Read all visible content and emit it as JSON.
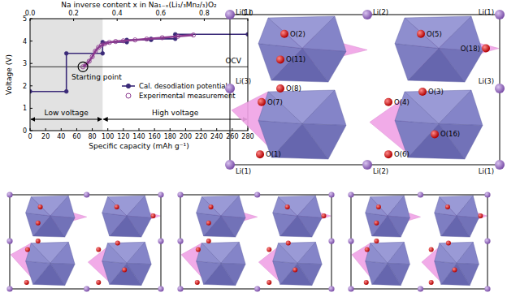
{
  "chart_data": {
    "type": "line",
    "xlabel": "Specific capacity (mAh g⁻¹)",
    "ylabel": "Voltage (V)",
    "x2label": "Na inverse content x in Na₁₋ₓ(Li₁/₃Mn₂/₃)O₂",
    "xlim": [
      0,
      280
    ],
    "xticks": [
      0,
      20,
      40,
      60,
      80,
      100,
      120,
      140,
      160,
      180,
      200,
      220,
      240,
      260,
      280
    ],
    "ylim": [
      0,
      5
    ],
    "yticks": [
      0,
      1,
      2,
      3,
      4,
      5
    ],
    "x2lim": [
      0,
      1
    ],
    "x2ticks": [
      {
        "value": 0,
        "label": "0.0"
      },
      0.2,
      0.4,
      0.6,
      0.8,
      {
        "value": 1,
        "label": "1.0"
      }
    ],
    "legend": "lower right",
    "series": [
      {
        "name": "Cal. desodiation potential",
        "color": "#3a2a78",
        "marker": "circle",
        "line_style": "solid",
        "x": [
          0,
          46.7,
          46.7,
          93.3,
          93.3,
          124.4,
          124.4,
          155.6,
          155.6,
          186.7,
          186.7,
          280
        ],
        "values": [
          1.75,
          1.75,
          3.45,
          3.45,
          3.95,
          3.95,
          4.05,
          4.05,
          4.1,
          4.1,
          4.3,
          4.3
        ]
      },
      {
        "name": "Experimental measurement",
        "color": "#8b3a8f",
        "marker": "open_circle",
        "line_style": "solid",
        "x": [
          68,
          72,
          76,
          80,
          84,
          88,
          92,
          96,
          102,
          110,
          120,
          135,
          150,
          170,
          190,
          210
        ],
        "values": [
          2.85,
          2.95,
          3.1,
          3.3,
          3.55,
          3.72,
          3.82,
          3.88,
          3.94,
          3.98,
          4.01,
          4.05,
          4.09,
          4.15,
          4.21,
          4.27
        ]
      }
    ],
    "regions": [
      {
        "label": "Low voltage",
        "x": [
          0,
          93.3
        ],
        "color": "#e2e2e2"
      },
      {
        "label": "High voltage",
        "x": [
          93.3,
          280
        ]
      }
    ],
    "reference_line": {
      "label": "OCV",
      "value": 2.85
    },
    "annotation": {
      "label": "Starting point",
      "x": 68,
      "y": 2.85
    }
  },
  "diagram": {
    "atoms": [
      {
        "label": "Li(1)"
      },
      {
        "label": "Li(2)"
      },
      {
        "label": "Li(1)"
      },
      {
        "label": "Li(3)"
      },
      {
        "label": "Li(3)"
      },
      {
        "label": "Li(1)"
      },
      {
        "label": "Li(2)"
      },
      {
        "label": "Li(1)"
      },
      {
        "label": "O(2)"
      },
      {
        "label": "O(5)"
      },
      {
        "label": "O(11)"
      },
      {
        "label": "O(18)"
      },
      {
        "label": "O(8)"
      },
      {
        "label": "O(7)"
      },
      {
        "label": "O(4)"
      },
      {
        "label": "O(3)"
      },
      {
        "label": "O(16)"
      },
      {
        "label": "O(1)"
      },
      {
        "label": "O(6)"
      }
    ]
  }
}
